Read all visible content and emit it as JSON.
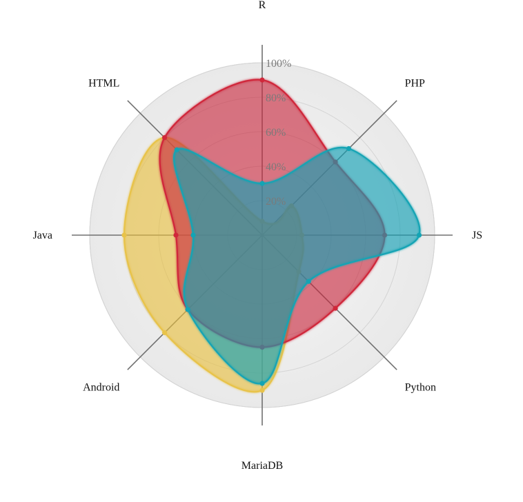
{
  "chart_data": {
    "type": "radar",
    "title": "",
    "axes": [
      "R",
      "PHP",
      "JS",
      "Python",
      "MariaDB",
      "Android",
      "Java",
      "HTML"
    ],
    "rmax": 100,
    "ticks": [
      20,
      40,
      60,
      80,
      100
    ],
    "tick_labels": [
      "20%",
      "40%",
      "60%",
      "80%",
      "100%"
    ],
    "grid": true,
    "legend": "none",
    "series": [
      {
        "color": "#e8c34a",
        "fill": "rgba(232, 190, 60, 0.38)",
        "values": [
          8,
          24,
          23,
          30,
          90,
          80,
          80,
          80
        ]
      },
      {
        "color": "#d0283a",
        "fill": "rgba(200, 40, 60, 0.38)",
        "values": [
          90,
          60,
          71,
          60,
          65,
          61,
          50,
          80
        ]
      },
      {
        "color": "#13a4b4",
        "fill": "rgba(20, 160, 180, 0.40)",
        "values": [
          30,
          71,
          91,
          38,
          86,
          61,
          40,
          70
        ]
      }
    ]
  }
}
